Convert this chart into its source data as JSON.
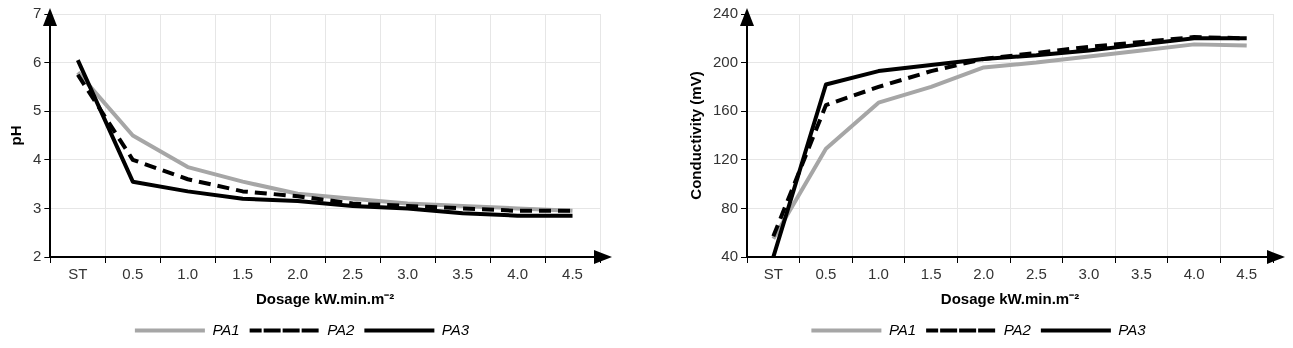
{
  "chart_data": [
    {
      "type": "line",
      "ylabel": "pH",
      "xlabel": "Dosage kW.min.m⁻²",
      "categories": [
        "ST",
        "0.5",
        "1.0",
        "1.5",
        "2.0",
        "2.5",
        "3.0",
        "3.5",
        "4.0",
        "4.5"
      ],
      "ylim": [
        2,
        7
      ],
      "yticks": [
        2,
        3,
        4,
        5,
        6,
        7
      ],
      "grid": true,
      "legend": "bottom",
      "marker": "none",
      "series": [
        {
          "name": "PA1",
          "color": "#a6a6a6",
          "line_style": "solid",
          "values": [
            5.8,
            4.5,
            3.85,
            3.55,
            3.3,
            3.2,
            3.1,
            3.05,
            3.0,
            2.95
          ]
        },
        {
          "name": "PA2",
          "color": "#000000",
          "line_style": "dashed",
          "values": [
            5.75,
            4.0,
            3.6,
            3.35,
            3.25,
            3.1,
            3.05,
            3.0,
            2.95,
            2.95
          ]
        },
        {
          "name": "PA3",
          "color": "#000000",
          "line_style": "solid",
          "values": [
            6.05,
            3.55,
            3.35,
            3.2,
            3.15,
            3.05,
            3.0,
            2.9,
            2.85,
            2.85
          ]
        }
      ]
    },
    {
      "type": "line",
      "ylabel": "Conductivity (mV)",
      "xlabel": "Dosage kW.min.m⁻²",
      "categories": [
        "ST",
        "0.5",
        "1.0",
        "1.5",
        "2.0",
        "2.5",
        "3.0",
        "3.5",
        "4.0",
        "4.5"
      ],
      "ylim": [
        40,
        240
      ],
      "yticks": [
        40,
        80,
        120,
        160,
        200,
        240
      ],
      "grid": true,
      "legend": "bottom",
      "marker": "none",
      "series": [
        {
          "name": "PA1",
          "color": "#a6a6a6",
          "line_style": "solid",
          "values": [
            55,
            129,
            167,
            180,
            196,
            200,
            205,
            210,
            215,
            214
          ]
        },
        {
          "name": "PA2",
          "color": "#000000",
          "line_style": "dashed",
          "values": [
            57,
            165,
            180,
            193,
            203,
            208,
            213,
            217,
            221,
            220
          ]
        },
        {
          "name": "PA3",
          "color": "#000000",
          "line_style": "solid",
          "values": [
            40,
            182,
            193,
            198,
            203,
            206,
            210,
            215,
            220,
            220
          ]
        }
      ]
    }
  ]
}
